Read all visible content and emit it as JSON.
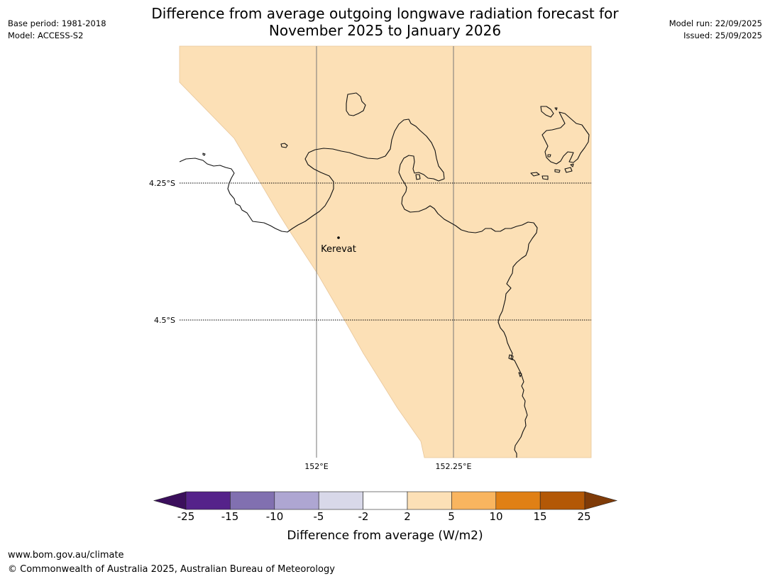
{
  "title": {
    "line1": "Difference from average outgoing longwave radiation forecast for",
    "line2": "November 2025 to January 2026"
  },
  "meta_left": {
    "base_period": "Base period: 1981-2018",
    "model": "Model: ACCESS-S2"
  },
  "meta_right": {
    "model_run": "Model run: 22/09/2025",
    "issued": "Issued: 25/09/2025"
  },
  "map": {
    "lat_labels": [
      "4.25°S",
      "4.5°S"
    ],
    "lon_labels": [
      "152°E",
      "152.25°E"
    ],
    "place": {
      "name": "Kerevat"
    },
    "fill_category": "2 to 5",
    "colors": {
      "fill": "#fce0b6",
      "fill_edge": "#e8c69a",
      "coast": "#111111",
      "meridian": "#777777",
      "parallel": "#000000"
    }
  },
  "colorbar": {
    "label": "Difference from average (W/m2)",
    "ticks": [
      "-25",
      "-15",
      "-10",
      "-5",
      "-2",
      "2",
      "5",
      "10",
      "15",
      "25"
    ],
    "colors": [
      "#3b0f5c",
      "#55228a",
      "#8170b0",
      "#aea6d2",
      "#d8d8e9",
      "#ffffff",
      "#fce0b6",
      "#f9b55f",
      "#e08015",
      "#b35806",
      "#7f3b08"
    ]
  },
  "footer": {
    "url": "www.bom.gov.au/climate",
    "copyright": "© Commonwealth of Australia 2025, Australian Bureau of Meteorology"
  }
}
